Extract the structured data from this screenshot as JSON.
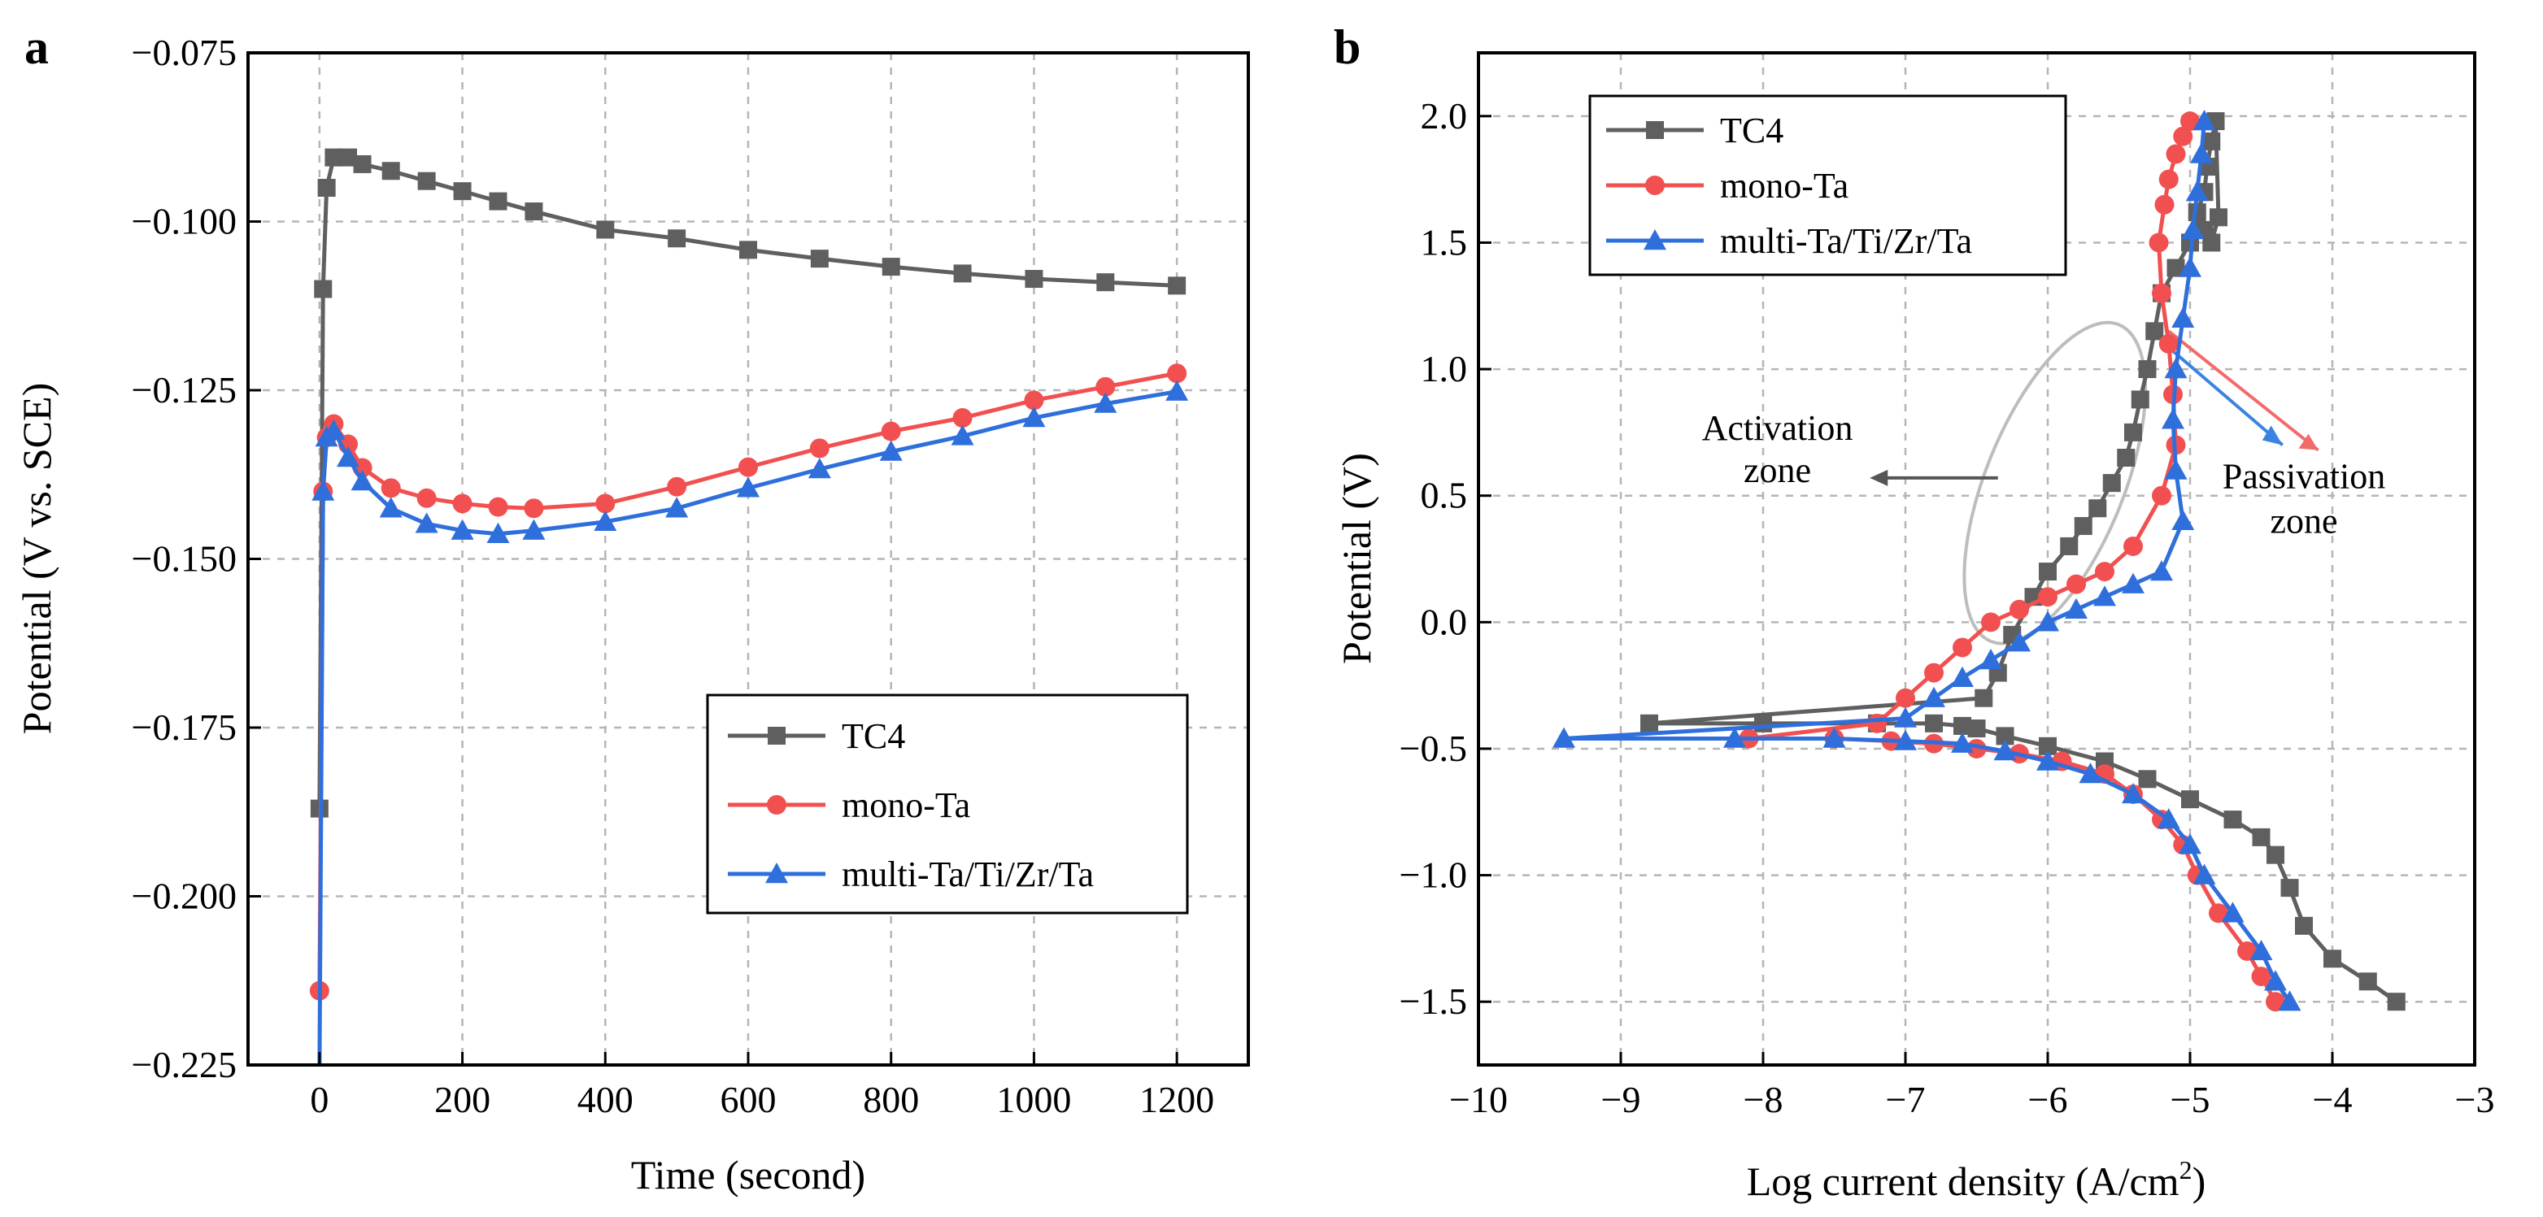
{
  "figure": {
    "panels": [
      "a",
      "b"
    ]
  },
  "chart_data": [
    {
      "panel": "a",
      "type": "line",
      "title": "",
      "xlabel": "Time (second)",
      "ylabel": "Potential (V vs. SCE)",
      "xlim": [
        -100,
        1300
      ],
      "ylim": [
        -0.225,
        -0.075
      ],
      "xticks": [
        0,
        200,
        400,
        600,
        800,
        1000,
        1200
      ],
      "yticks": [
        -0.075,
        -0.1,
        -0.125,
        -0.15,
        -0.175,
        -0.2,
        -0.225
      ],
      "xtick_labels": [
        "0",
        "200",
        "400",
        "600",
        "800",
        "1000",
        "1200"
      ],
      "ytick_labels": [
        "−0.075",
        "−0.100",
        "−0.125",
        "−0.150",
        "−0.175",
        "−0.200",
        "−0.225"
      ],
      "grid": true,
      "legend": {
        "placement": "bottom-right",
        "entries": [
          "TC4",
          "mono-Ta",
          "multi-Ta/Ti/Zr/Ta"
        ]
      },
      "series": [
        {
          "name": "TC4",
          "color": "#5f5f5f",
          "marker": "square",
          "x": [
            0,
            5,
            10,
            20,
            40,
            60,
            100,
            150,
            200,
            250,
            300,
            400,
            500,
            600,
            700,
            800,
            900,
            1000,
            1100,
            1200
          ],
          "y": [
            -0.187,
            -0.11,
            -0.095,
            -0.0905,
            -0.0905,
            -0.0915,
            -0.0925,
            -0.094,
            -0.0955,
            -0.097,
            -0.0985,
            -0.1012,
            -0.1025,
            -0.1042,
            -0.1055,
            -0.1067,
            -0.1077,
            -0.1085,
            -0.109,
            -0.1095
          ]
        },
        {
          "name": "mono-Ta",
          "color": "#f25050",
          "marker": "circle",
          "x": [
            0,
            5,
            10,
            20,
            40,
            60,
            100,
            150,
            200,
            250,
            300,
            400,
            500,
            600,
            700,
            800,
            900,
            1000,
            1100,
            1200
          ],
          "y": [
            -0.214,
            -0.14,
            -0.132,
            -0.13,
            -0.133,
            -0.1365,
            -0.1395,
            -0.141,
            -0.1418,
            -0.1423,
            -0.1425,
            -0.1418,
            -0.1393,
            -0.1364,
            -0.1336,
            -0.1311,
            -0.1291,
            -0.1265,
            -0.1245,
            -0.1225
          ]
        },
        {
          "name": "multi-Ta/Ti/Zr/Ta",
          "color": "#2f6fdc",
          "marker": "triangle",
          "x": [
            0,
            5,
            10,
            20,
            40,
            60,
            100,
            150,
            200,
            250,
            300,
            400,
            500,
            600,
            700,
            800,
            900,
            1000,
            1100,
            1200
          ],
          "y": [
            -0.226,
            -0.14,
            -0.132,
            -0.131,
            -0.135,
            -0.1385,
            -0.1425,
            -0.1448,
            -0.1458,
            -0.1463,
            -0.1458,
            -0.1445,
            -0.1425,
            -0.1395,
            -0.1367,
            -0.1341,
            -0.1318,
            -0.1291,
            -0.127,
            -0.1252
          ]
        }
      ]
    },
    {
      "panel": "b",
      "type": "line",
      "title": "",
      "xlabel": "Log current density (A/cm²)",
      "ylabel": "Potential (V)",
      "xlim": [
        -10,
        -3
      ],
      "ylim": [
        -1.75,
        2.25
      ],
      "xticks": [
        -10,
        -9,
        -8,
        -7,
        -6,
        -5,
        -4,
        -3
      ],
      "yticks": [
        -1.5,
        -1.0,
        -0.5,
        0.0,
        0.5,
        1.0,
        1.5,
        2.0
      ],
      "xtick_labels": [
        "−10",
        "−9",
        "−8",
        "−7",
        "−6",
        "−5",
        "−4",
        "−3"
      ],
      "ytick_labels": [
        "−1.5",
        "−1.0",
        "−0.5",
        "0.0",
        "0.5",
        "1.0",
        "1.5",
        "2.0"
      ],
      "grid": true,
      "legend": {
        "placement": "top-left",
        "entries": [
          "TC4",
          "mono-Ta",
          "multi-Ta/Ti/Zr/Ta"
        ]
      },
      "annotations": [
        {
          "text_lines": [
            "Activation",
            "zone"
          ]
        },
        {
          "text_lines": [
            "Passivation",
            "zone"
          ]
        }
      ],
      "series": [
        {
          "name": "TC4",
          "color": "#5f5f5f",
          "marker": "square",
          "x": [
            -3.55,
            -3.75,
            -4.0,
            -4.2,
            -4.3,
            -4.4,
            -4.5,
            -4.7,
            -5.0,
            -5.3,
            -5.6,
            -6.0,
            -6.3,
            -6.5,
            -6.6,
            -6.8,
            -7.2,
            -8.0,
            -8.8,
            -6.45,
            -6.35,
            -6.25,
            -6.1,
            -6.0,
            -5.85,
            -5.75,
            -5.65,
            -5.55,
            -5.45,
            -5.4,
            -5.35,
            -5.3,
            -5.25,
            -5.2,
            -5.1,
            -5.0,
            -4.95,
            -4.9,
            -4.88,
            -4.85,
            -4.82,
            -4.8,
            -4.85,
            -4.9
          ],
          "y": [
            -1.5,
            -1.42,
            -1.33,
            -1.2,
            -1.05,
            -0.92,
            -0.85,
            -0.78,
            -0.7,
            -0.62,
            -0.55,
            -0.49,
            -0.45,
            -0.42,
            -0.41,
            -0.4,
            -0.4,
            -0.4,
            -0.4,
            -0.3,
            -0.2,
            -0.05,
            0.1,
            0.2,
            0.3,
            0.38,
            0.45,
            0.55,
            0.65,
            0.75,
            0.88,
            1.0,
            1.15,
            1.3,
            1.4,
            1.5,
            1.62,
            1.7,
            1.8,
            1.9,
            1.98,
            1.6,
            1.5,
            1.55
          ]
        },
        {
          "name": "mono-Ta",
          "color": "#f25050",
          "marker": "circle",
          "x": [
            -4.4,
            -4.5,
            -4.6,
            -4.8,
            -4.95,
            -5.05,
            -5.2,
            -5.4,
            -5.6,
            -5.9,
            -6.2,
            -6.5,
            -6.8,
            -7.1,
            -7.5,
            -8.1,
            -7.2,
            -7.0,
            -6.8,
            -6.6,
            -6.4,
            -6.2,
            -6.0,
            -5.8,
            -5.6,
            -5.4,
            -5.2,
            -5.1,
            -5.12,
            -5.15,
            -5.2,
            -5.22,
            -5.18,
            -5.15,
            -5.1,
            -5.05,
            -5.0
          ],
          "y": [
            -1.5,
            -1.4,
            -1.3,
            -1.15,
            -1.0,
            -0.88,
            -0.78,
            -0.68,
            -0.6,
            -0.55,
            -0.52,
            -0.5,
            -0.48,
            -0.47,
            -0.46,
            -0.46,
            -0.4,
            -0.3,
            -0.2,
            -0.1,
            0.0,
            0.05,
            0.1,
            0.15,
            0.2,
            0.3,
            0.5,
            0.7,
            0.9,
            1.1,
            1.3,
            1.5,
            1.65,
            1.75,
            1.85,
            1.92,
            1.98
          ]
        },
        {
          "name": "multi-Ta/Ti/Zr/Ta",
          "color": "#2f6fdc",
          "marker": "triangle",
          "x": [
            -4.3,
            -4.4,
            -4.5,
            -4.7,
            -4.9,
            -5.0,
            -5.15,
            -5.4,
            -5.7,
            -6.0,
            -6.3,
            -6.6,
            -7.0,
            -7.5,
            -8.2,
            -9.4,
            -7.0,
            -6.8,
            -6.6,
            -6.4,
            -6.2,
            -6.0,
            -5.8,
            -5.6,
            -5.4,
            -5.2,
            -5.05,
            -5.1,
            -5.12,
            -5.1,
            -5.05,
            -5.0,
            -4.98,
            -4.95,
            -4.92,
            -4.9
          ],
          "y": [
            -1.5,
            -1.42,
            -1.3,
            -1.15,
            -1.0,
            -0.88,
            -0.78,
            -0.68,
            -0.6,
            -0.55,
            -0.51,
            -0.48,
            -0.47,
            -0.46,
            -0.46,
            -0.46,
            -0.38,
            -0.3,
            -0.22,
            -0.15,
            -0.08,
            0.0,
            0.05,
            0.1,
            0.15,
            0.2,
            0.4,
            0.6,
            0.8,
            1.0,
            1.2,
            1.4,
            1.55,
            1.7,
            1.85,
            1.98
          ]
        }
      ]
    }
  ]
}
